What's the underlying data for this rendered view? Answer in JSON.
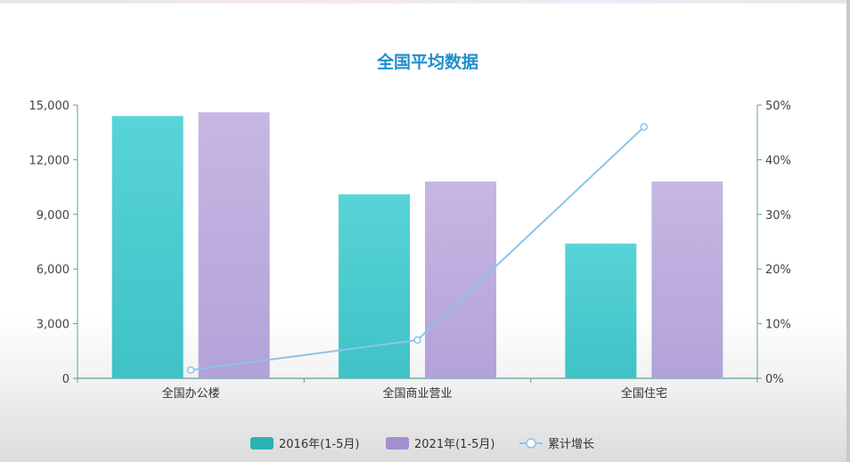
{
  "chart_data": {
    "type": "bar",
    "title": "全国平均数据",
    "categories": [
      "全国办公楼",
      "全国商业营业",
      "全国住宅"
    ],
    "series": [
      {
        "name": "2016年(1-5月)",
        "type": "bar",
        "axis": "left",
        "color": "#4fcfd3",
        "values": [
          14400,
          10100,
          7400
        ]
      },
      {
        "name": "2021年(1-5月)",
        "type": "bar",
        "axis": "left",
        "color": "#bfb0e0",
        "values": [
          14600,
          10800,
          10800
        ]
      },
      {
        "name": "累计增长",
        "type": "line",
        "axis": "right",
        "color": "#8cc3ea",
        "values": [
          1.5,
          7,
          46
        ]
      }
    ],
    "y_left": {
      "min": 0,
      "max": 15000,
      "ticks": [
        "0",
        "3,000",
        "6,000",
        "9,000",
        "12,000",
        "15,000"
      ],
      "tick_values": [
        0,
        3000,
        6000,
        9000,
        12000,
        15000
      ]
    },
    "y_right": {
      "min": 0,
      "max": 50,
      "ticks": [
        "0%",
        "10%",
        "20%",
        "30%",
        "40%",
        "50%"
      ],
      "tick_values": [
        0,
        10,
        20,
        30,
        40,
        50
      ]
    },
    "legend_position": "bottom-center",
    "grid": false,
    "axis_color": "#5f9ea0",
    "legend_colors": [
      "#29b3b3",
      "#a28fd0",
      "#8cc3ea"
    ]
  }
}
